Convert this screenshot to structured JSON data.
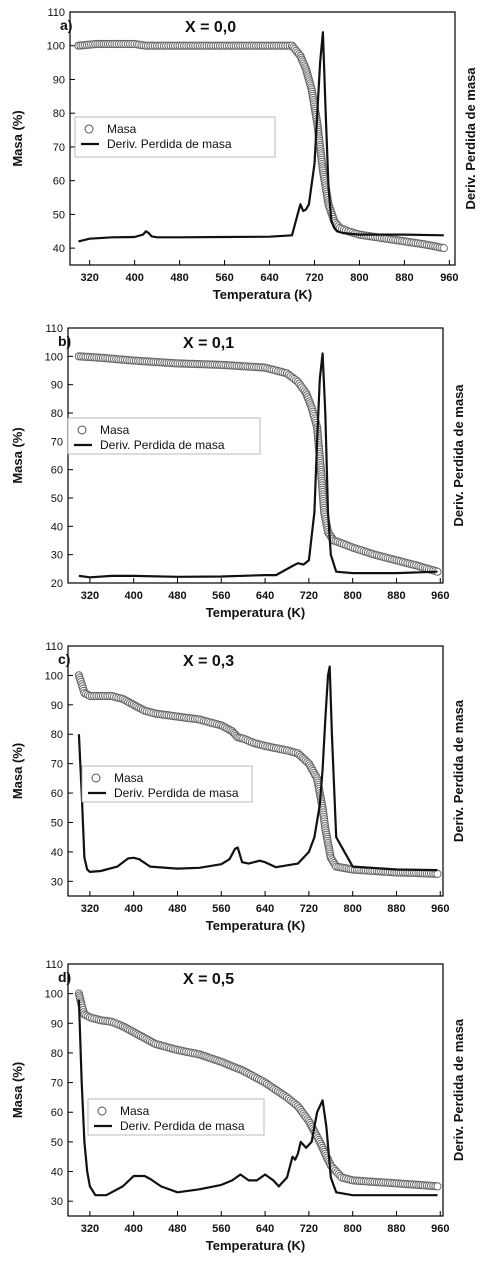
{
  "chart_data": [
    {
      "type": "scatter",
      "panel_label": "a)",
      "title": "X = 0,0",
      "xlabel": "Temperatura (K)",
      "ylabel": "Masa (%)",
      "y2label": "Deriv. Perdida de masa",
      "xlim": [
        285,
        970
      ],
      "ylim": [
        35,
        110
      ],
      "xticks": [
        320,
        400,
        480,
        560,
        640,
        720,
        800,
        880,
        960
      ],
      "yticks": [
        40,
        50,
        60,
        70,
        80,
        90,
        100,
        110
      ],
      "legend_position": "middle-left",
      "series": [
        {
          "name": "Masa",
          "style": "circles",
          "x": [
            300,
            330,
            360,
            400,
            420,
            440,
            480,
            560,
            640,
            680,
            695,
            705,
            715,
            725,
            735,
            745,
            755,
            765,
            780,
            800,
            840,
            880,
            920,
            950
          ],
          "y": [
            100,
            100.5,
            100.5,
            100.5,
            100,
            100,
            100,
            100,
            100,
            100,
            97,
            93,
            87,
            77,
            63,
            53,
            48,
            46,
            45,
            44,
            43,
            42,
            41,
            40
          ]
        },
        {
          "name": "Deriv. Perdida de masa",
          "style": "line",
          "x": [
            300,
            320,
            360,
            400,
            415,
            420,
            425,
            430,
            440,
            480,
            560,
            640,
            680,
            690,
            695,
            700,
            705,
            710,
            720,
            730,
            735,
            740,
            745,
            750,
            755,
            760,
            770,
            800,
            880,
            950
          ],
          "y": [
            42,
            42.8,
            43.2,
            43.3,
            44,
            45,
            44.5,
            43.5,
            43.2,
            43.2,
            43.3,
            43.4,
            43.8,
            50,
            53,
            51,
            51.5,
            53,
            65,
            95,
            104,
            80,
            58,
            48,
            46,
            45,
            44.5,
            44,
            44,
            43.8
          ]
        }
      ]
    },
    {
      "type": "scatter",
      "panel_label": "b)",
      "title": "X = 0,1",
      "xlabel": "Temperatura (K)",
      "ylabel": "Masa (%)",
      "y2label": "Deriv. Perdida de masa",
      "xlim": [
        280,
        965
      ],
      "ylim": [
        20,
        110
      ],
      "xticks": [
        320,
        400,
        480,
        560,
        640,
        720,
        800,
        880,
        960
      ],
      "yticks": [
        20,
        30,
        40,
        50,
        60,
        70,
        80,
        90,
        100,
        110
      ],
      "legend_position": "middle-left",
      "series": [
        {
          "name": "Masa",
          "style": "circles",
          "x": [
            300,
            340,
            400,
            480,
            560,
            640,
            680,
            700,
            715,
            725,
            735,
            742,
            748,
            755,
            765,
            780,
            800,
            840,
            880,
            920,
            955
          ],
          "y": [
            100,
            99.5,
            98.5,
            97.5,
            97,
            96,
            94,
            91,
            87,
            82,
            75,
            60,
            45,
            38,
            35,
            34,
            32.5,
            30,
            28,
            26,
            24
          ]
        },
        {
          "name": "Deriv. Perdida de masa",
          "style": "line",
          "x": [
            300,
            320,
            360,
            400,
            480,
            560,
            640,
            660,
            690,
            700,
            710,
            720,
            730,
            735,
            740,
            745,
            750,
            755,
            760,
            770,
            800,
            880,
            955
          ],
          "y": [
            22.5,
            22,
            22.5,
            22.5,
            22.2,
            22.3,
            22.8,
            22.8,
            26,
            27,
            26.5,
            28,
            45,
            70,
            92,
            101,
            80,
            45,
            30,
            24,
            23.5,
            23.5,
            24
          ]
        }
      ]
    },
    {
      "type": "scatter",
      "panel_label": "c)",
      "title": "X = 0,3",
      "xlabel": "Temperatura (K)",
      "ylabel": "Masa (%)",
      "y2label": "Deriv. Perdida de masa",
      "xlim": [
        280,
        965
      ],
      "ylim": [
        25,
        110
      ],
      "xticks": [
        320,
        400,
        480,
        560,
        640,
        720,
        800,
        880,
        960
      ],
      "yticks": [
        30,
        40,
        50,
        60,
        70,
        80,
        90,
        100,
        110
      ],
      "legend_position": "middle-left",
      "series": [
        {
          "name": "Masa",
          "style": "circles",
          "x": [
            300,
            305,
            310,
            320,
            340,
            360,
            380,
            400,
            420,
            440,
            480,
            520,
            560,
            580,
            590,
            600,
            620,
            640,
            680,
            700,
            720,
            735,
            745,
            750,
            755,
            760,
            770,
            800,
            840,
            880,
            920,
            955
          ],
          "y": [
            100,
            97,
            94,
            93,
            93,
            93,
            92,
            90,
            88,
            87,
            86,
            85,
            83,
            81,
            79,
            78.5,
            77,
            76,
            74.5,
            73.5,
            70,
            65,
            55,
            48,
            43,
            38,
            35,
            34,
            33.5,
            33,
            32.8,
            32.5
          ]
        },
        {
          "name": "Deriv. Perdida de masa",
          "style": "line",
          "x": [
            300,
            305,
            310,
            315,
            320,
            340,
            370,
            390,
            400,
            410,
            430,
            480,
            520,
            560,
            575,
            585,
            590,
            598,
            610,
            630,
            640,
            660,
            700,
            720,
            730,
            740,
            745,
            750,
            755,
            758,
            762,
            770,
            800,
            880,
            955
          ],
          "y": [
            80,
            60,
            38,
            34,
            33.2,
            33.5,
            35,
            37.8,
            38,
            37.5,
            35,
            34.3,
            34.6,
            35.8,
            37.5,
            41,
            41.5,
            36.5,
            36,
            37,
            36.5,
            34.8,
            36,
            40,
            45,
            56,
            68,
            85,
            100,
            103,
            80,
            45,
            35,
            34,
            33.8
          ]
        }
      ]
    },
    {
      "type": "scatter",
      "panel_label": "d)",
      "title": "X = 0,5",
      "xlabel": "Temperatura (K)",
      "ylabel": "Masa (%)",
      "y2label": "Deriv. Perdida de masa",
      "xlim": [
        280,
        965
      ],
      "ylim": [
        25,
        110
      ],
      "xticks": [
        320,
        400,
        480,
        560,
        640,
        720,
        800,
        880,
        960
      ],
      "yticks": [
        30,
        40,
        50,
        60,
        70,
        80,
        90,
        100,
        110
      ],
      "legend_position": "middle-left",
      "series": [
        {
          "name": "Masa",
          "style": "circles",
          "x": [
            300,
            305,
            310,
            320,
            340,
            360,
            380,
            400,
            420,
            440,
            480,
            520,
            560,
            600,
            640,
            680,
            700,
            720,
            740,
            760,
            780,
            800,
            840,
            880,
            920,
            955
          ],
          "y": [
            100,
            96,
            93,
            92,
            91,
            90.5,
            89,
            87,
            85,
            83,
            81,
            79.5,
            77,
            74,
            70,
            65,
            62,
            57,
            50,
            42,
            38,
            37,
            36.5,
            36,
            35.5,
            35
          ]
        },
        {
          "name": "Deriv. Perdida de masa",
          "style": "line",
          "x": [
            300,
            305,
            310,
            315,
            320,
            330,
            350,
            380,
            400,
            420,
            430,
            450,
            480,
            520,
            560,
            580,
            595,
            610,
            625,
            640,
            655,
            665,
            680,
            690,
            695,
            700,
            705,
            715,
            725,
            735,
            745,
            752,
            760,
            770,
            800,
            880,
            955
          ],
          "y": [
            98,
            70,
            50,
            40,
            35,
            32,
            32,
            35,
            38.5,
            38.5,
            37.5,
            35,
            33,
            34,
            35.5,
            37,
            39,
            37,
            37,
            39,
            37,
            35,
            38,
            45,
            44,
            46,
            50,
            48,
            50,
            60,
            64,
            55,
            38,
            33,
            32,
            32,
            32
          ]
        }
      ]
    }
  ]
}
